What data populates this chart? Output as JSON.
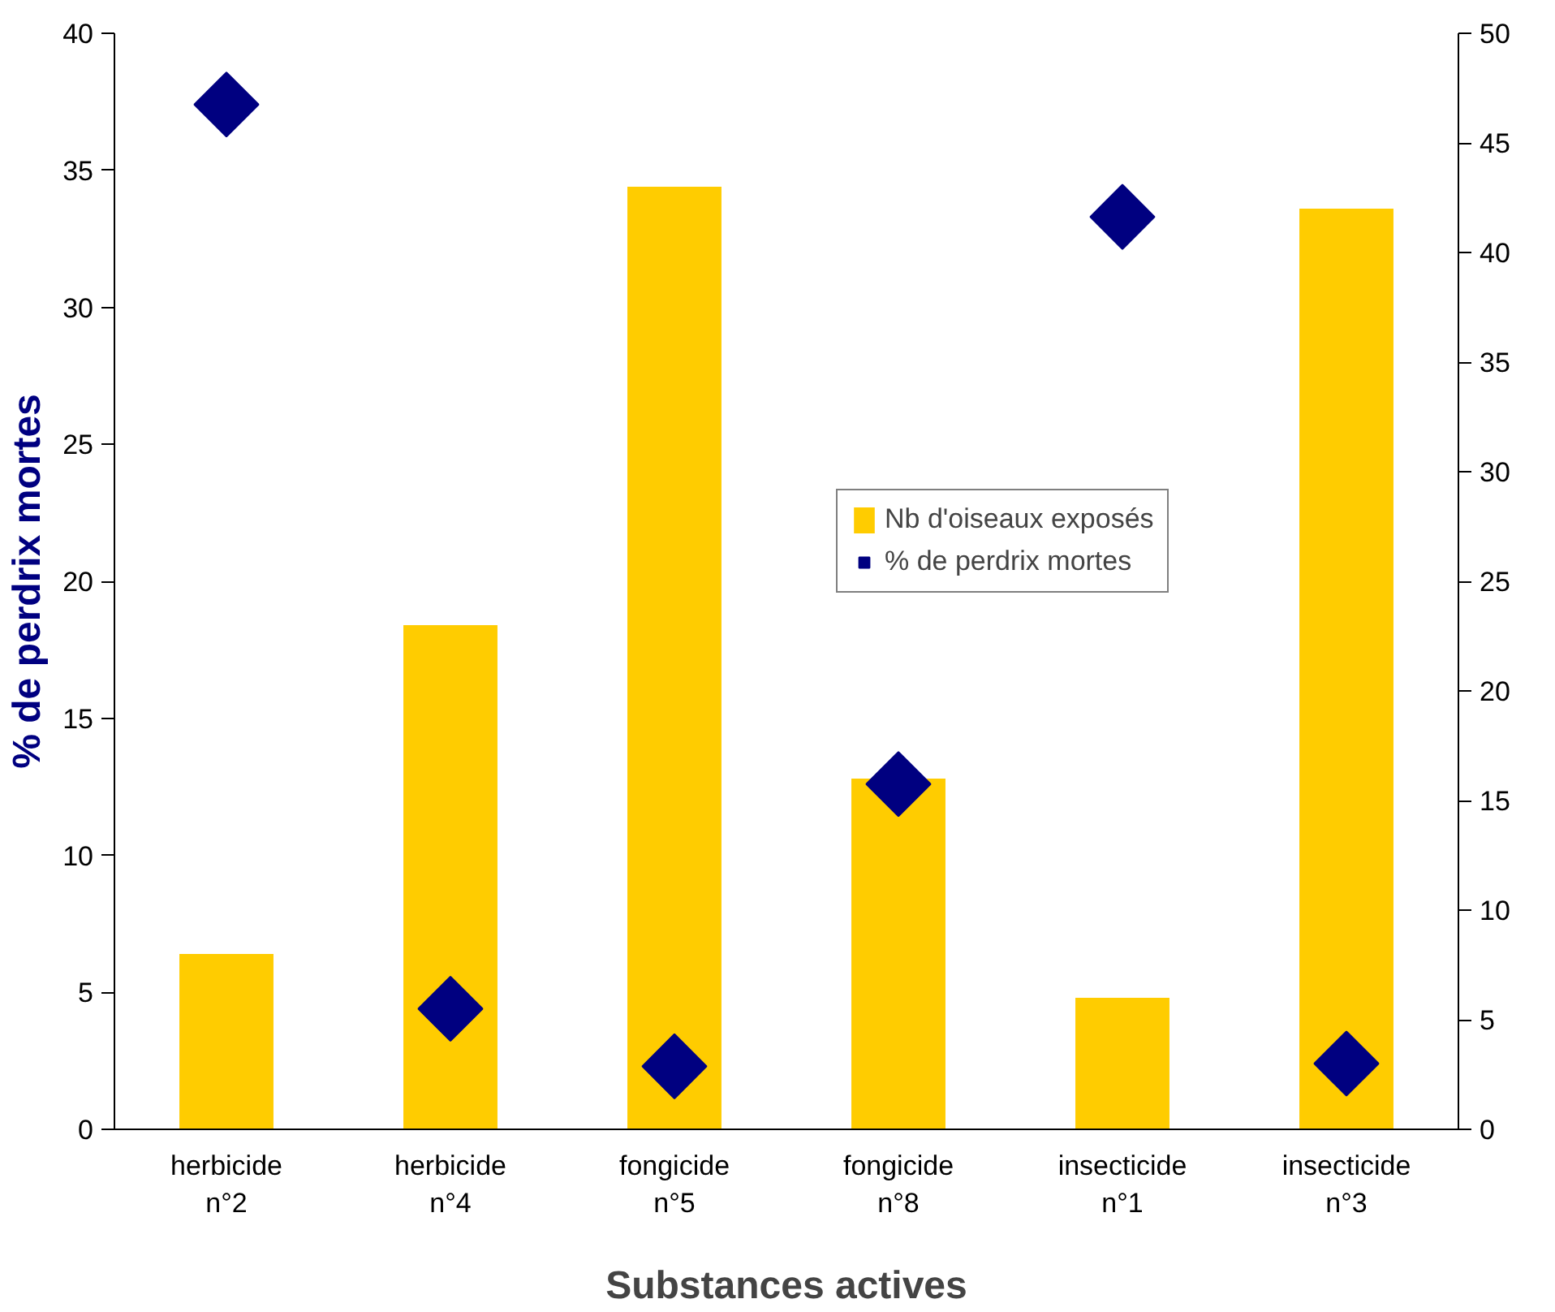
{
  "chart_data": {
    "type": "bar",
    "xlabel": "Substances actives",
    "ylabel": "% de perdrix mortes",
    "categories": [
      "herbicide\nn°2",
      "herbicide\nn°4",
      "fongicide\nn°5",
      "fongicide\nn°8",
      "insecticide\nn°1",
      "insecticide\nn°3"
    ],
    "series": [
      {
        "name": "Nb d'oiseaux exposés",
        "axis": "y2",
        "color": "#ffcc00",
        "values": [
          8,
          23,
          43,
          16,
          6,
          42
        ]
      },
      {
        "name": "% de perdrix mortes",
        "type": "scatter",
        "marker": "diamond",
        "color": "#000080",
        "values": [
          37.4,
          4.4,
          2.3,
          12.6,
          33.3,
          2.4
        ]
      }
    ],
    "ylim": [
      0,
      40
    ],
    "yticks": [
      0,
      5,
      10,
      15,
      20,
      25,
      30,
      35,
      40
    ],
    "y2lim": [
      0,
      50
    ],
    "y2ticks": [
      0,
      5,
      10,
      15,
      20,
      25,
      30,
      35,
      40,
      45,
      50
    ],
    "grid": false,
    "legend": "right"
  }
}
